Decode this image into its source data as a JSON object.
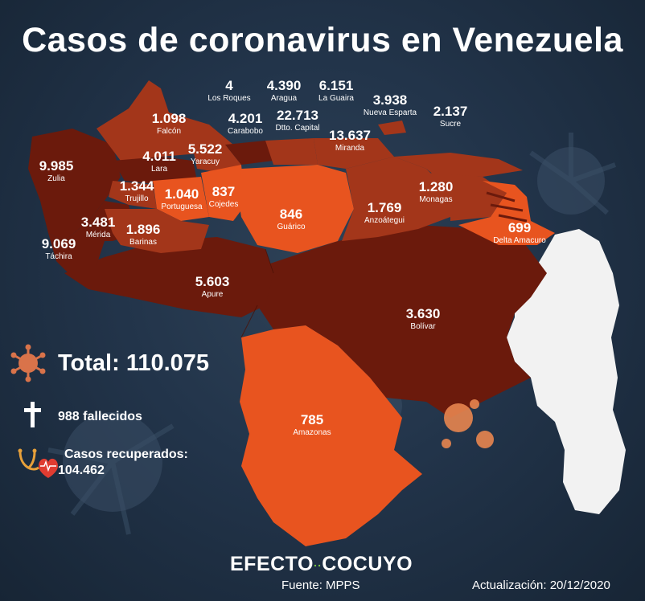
{
  "title": "Casos de coronavirus en Venezuela",
  "total_label": "Total: 110.075",
  "deaths_label": "988 fallecidos",
  "recovered_label": "Casos recuperados:",
  "recovered_value": "104.462",
  "brand_left": "EFECTO",
  "brand_right": "COCUYO",
  "source": "Fuente: MPPS",
  "updated": "Actualización: 20/12/2020",
  "colors": {
    "background": "#22344a",
    "dark": "#6b1a0c",
    "medium": "#a3361a",
    "bright": "#e8541f",
    "island": "#f2f2f2",
    "virus": "#d9734a"
  },
  "icons": {
    "total": "virus-icon",
    "deaths": "cross-icon",
    "recovered": "stethoscope-heart-icon"
  },
  "states": [
    {
      "cases": "4",
      "name": "Los Roques"
    },
    {
      "cases": "4.390",
      "name": "Aragua"
    },
    {
      "cases": "6.151",
      "name": "La Guaira"
    },
    {
      "cases": "3.938",
      "name": "Nueva Esparta"
    },
    {
      "cases": "1.098",
      "name": "Falcón"
    },
    {
      "cases": "4.201",
      "name": "Carabobo"
    },
    {
      "cases": "22.713",
      "name": "Dtto. Capital"
    },
    {
      "cases": "2.137",
      "name": "Sucre"
    },
    {
      "cases": "13.637",
      "name": "Miranda"
    },
    {
      "cases": "4.011",
      "name": "Lara"
    },
    {
      "cases": "5.522",
      "name": "Yaracuy"
    },
    {
      "cases": "9.985",
      "name": "Zulia"
    },
    {
      "cases": "1.344",
      "name": "Trujillo"
    },
    {
      "cases": "1.040",
      "name": "Portuguesa"
    },
    {
      "cases": "837",
      "name": "Cojedes"
    },
    {
      "cases": "846",
      "name": "Guárico"
    },
    {
      "cases": "1.769",
      "name": "Anzoátegui"
    },
    {
      "cases": "1.280",
      "name": "Monagas"
    },
    {
      "cases": "3.481",
      "name": "Mérida"
    },
    {
      "cases": "1.896",
      "name": "Barinas"
    },
    {
      "cases": "9.069",
      "name": "Táchira"
    },
    {
      "cases": "699",
      "name": "Delta Amacuro"
    },
    {
      "cases": "5.603",
      "name": "Apure"
    },
    {
      "cases": "3.630",
      "name": "Bolívar"
    },
    {
      "cases": "785",
      "name": "Amazonas"
    }
  ]
}
